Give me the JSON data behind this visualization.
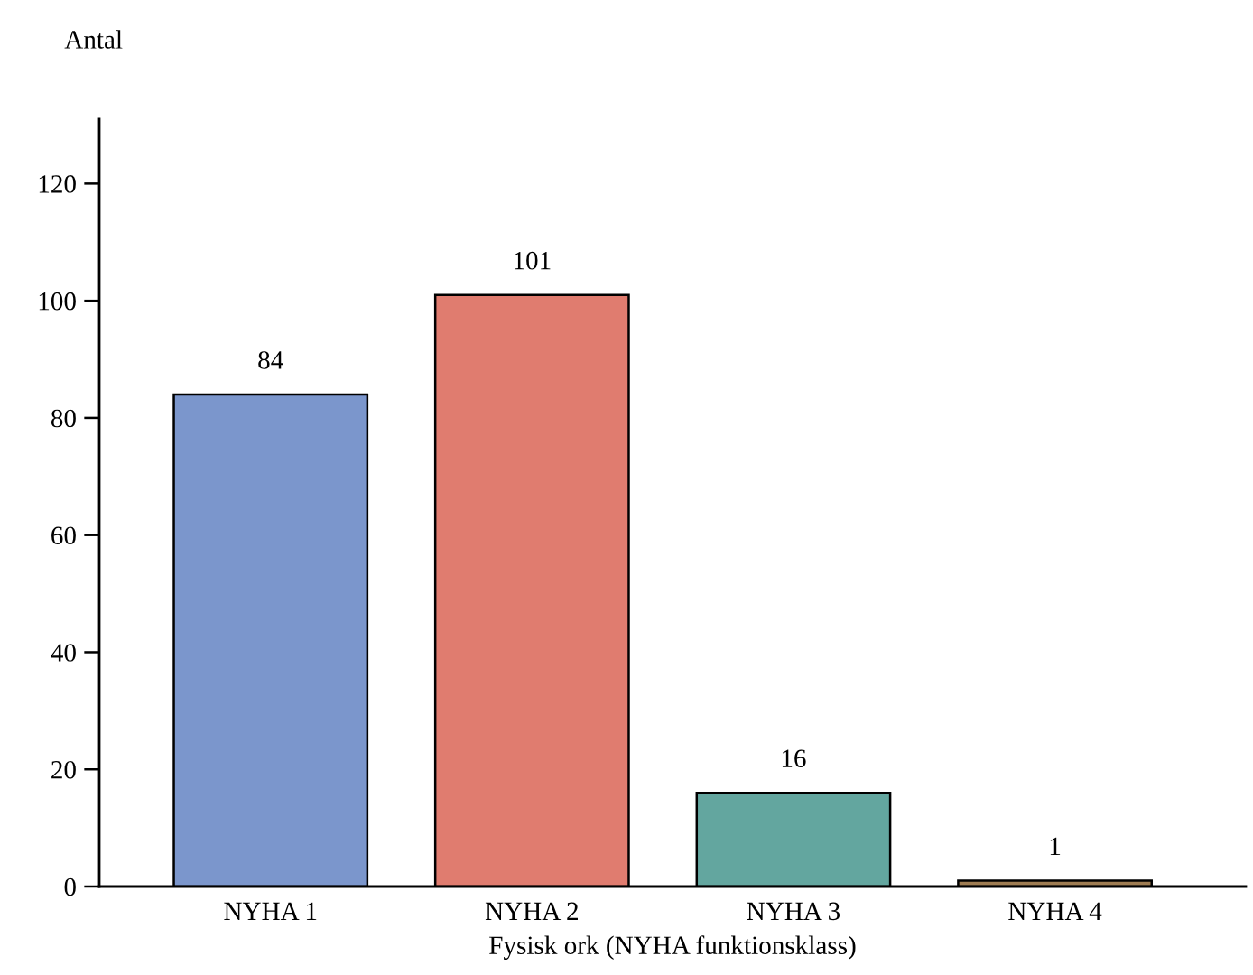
{
  "chart_data": {
    "type": "bar",
    "categories": [
      "NYHA 1",
      "NYHA 2",
      "NYHA 3",
      "NYHA 4"
    ],
    "values": [
      84,
      101,
      16,
      1
    ],
    "colors": [
      "#7b96cc",
      "#e07c6f",
      "#63a69f",
      "#9e7c52"
    ],
    "xlabel": "Fysisk ork (NYHA funktionsklass)",
    "ylabel": "Antal",
    "ylim": [
      0,
      131
    ],
    "yticks": [
      0,
      20,
      40,
      60,
      80,
      100,
      120
    ],
    "data_labels": true,
    "grid": false,
    "legend": false
  }
}
